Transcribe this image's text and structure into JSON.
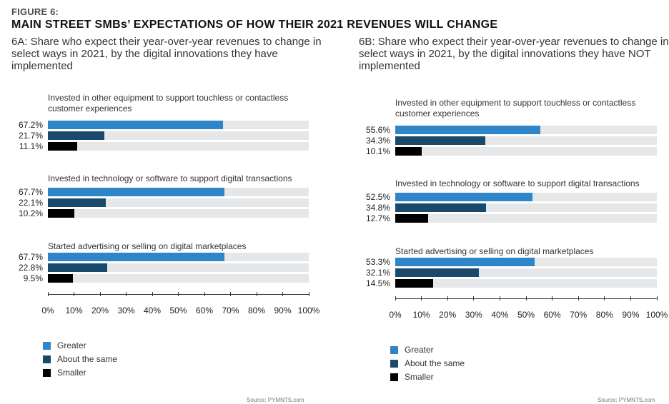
{
  "figure_label": "FIGURE 6:",
  "figure_title": "MAIN STREET SMBs’ EXPECTATIONS OF HOW THEIR 2021 REVENUES WILL CHANGE",
  "colors": {
    "greater": "#2e86c8",
    "about_same": "#1a4a6b",
    "smaller": "#000000",
    "track": "#e6e7e8"
  },
  "legend": [
    {
      "key": "greater",
      "label": "Greater"
    },
    {
      "key": "about_same",
      "label": "About the same"
    },
    {
      "key": "smaller",
      "label": "Smaller"
    }
  ],
  "source": "Source: PYMNTS.com",
  "chart_data": [
    {
      "type": "bar",
      "orientation": "horizontal",
      "title": "6A: Share who expect their year-over-year revenues to change in select ways in 2021, by the digital innovations they have implemented",
      "xlim": [
        0,
        100
      ],
      "x_ticks": [
        "0%",
        "10%",
        "20%",
        "30%",
        "40%",
        "50%",
        "60%",
        "70%",
        "80%",
        "90%",
        "100%"
      ],
      "legend_position": "bottom-left",
      "groups": [
        {
          "label": "Invested in other equipment to support touchless or contactless customer experiences",
          "series": [
            {
              "name": "Greater",
              "value": 67.2,
              "label": "67.2%"
            },
            {
              "name": "About the same",
              "value": 21.7,
              "label": "21.7%"
            },
            {
              "name": "Smaller",
              "value": 11.1,
              "label": "11.1%"
            }
          ]
        },
        {
          "label": "Invested in technology or software to support digital transactions",
          "series": [
            {
              "name": "Greater",
              "value": 67.7,
              "label": "67.7%"
            },
            {
              "name": "About the same",
              "value": 22.1,
              "label": "22.1%"
            },
            {
              "name": "Smaller",
              "value": 10.2,
              "label": "10.2%"
            }
          ]
        },
        {
          "label": "Started advertising or selling on digital marketplaces",
          "series": [
            {
              "name": "Greater",
              "value": 67.7,
              "label": "67.7%"
            },
            {
              "name": "About the same",
              "value": 22.8,
              "label": "22.8%"
            },
            {
              "name": "Smaller",
              "value": 9.5,
              "label": "9.5%"
            }
          ]
        }
      ]
    },
    {
      "type": "bar",
      "orientation": "horizontal",
      "title": "6B: Share who expect their year-over-year revenues to change in select ways in 2021, by the digital innovations they have NOT implemented",
      "xlim": [
        0,
        100
      ],
      "x_ticks": [
        "0%",
        "10%",
        "20%",
        "30%",
        "40%",
        "50%",
        "60%",
        "70%",
        "80%",
        "90%",
        "100%"
      ],
      "legend_position": "bottom-left",
      "groups": [
        {
          "label": "Invested in other equipment to support touchless or contactless customer experiences",
          "series": [
            {
              "name": "Greater",
              "value": 55.6,
              "label": "55.6%"
            },
            {
              "name": "About the same",
              "value": 34.3,
              "label": "34.3%"
            },
            {
              "name": "Smaller",
              "value": 10.1,
              "label": "10.1%"
            }
          ]
        },
        {
          "label": "Invested in technology or software to support digital transactions",
          "series": [
            {
              "name": "Greater",
              "value": 52.5,
              "label": "52.5%"
            },
            {
              "name": "About the same",
              "value": 34.8,
              "label": "34.8%"
            },
            {
              "name": "Smaller",
              "value": 12.7,
              "label": "12.7%"
            }
          ]
        },
        {
          "label": "Started advertising or selling on digital marketplaces",
          "series": [
            {
              "name": "Greater",
              "value": 53.3,
              "label": "53.3%"
            },
            {
              "name": "About the same",
              "value": 32.1,
              "label": "32.1%"
            },
            {
              "name": "Smaller",
              "value": 14.5,
              "label": "14.5%"
            }
          ]
        }
      ]
    }
  ]
}
